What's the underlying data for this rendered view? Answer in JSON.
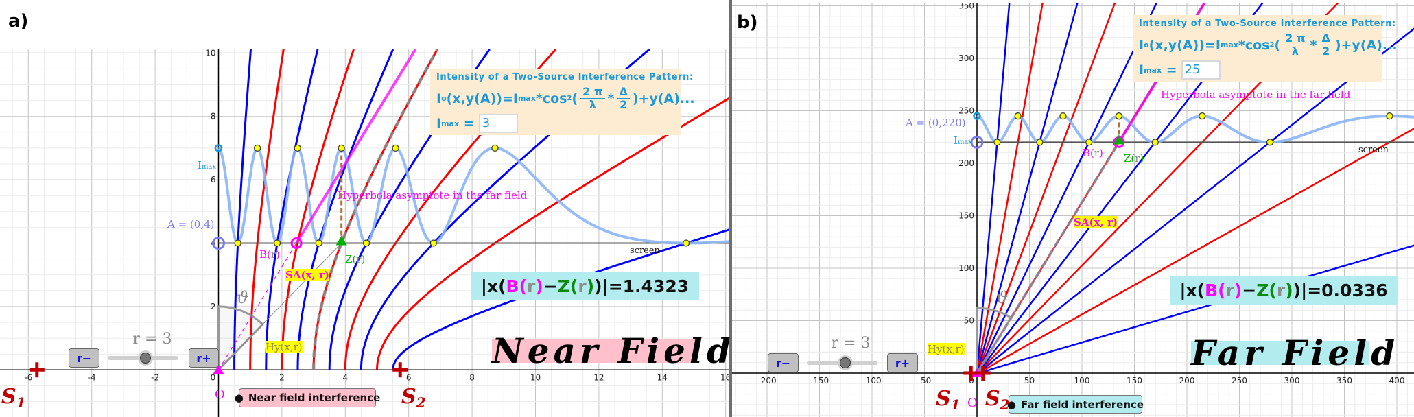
{
  "colors": {
    "min_hyperbola": "#0000ff",
    "max_hyperbola": "#ff0000",
    "intensity_curve": "#8ab4f8",
    "asymptote": "#ff00ff",
    "z_point": "#00b000",
    "source": "#c00000",
    "max_point": "#ffff00",
    "near_field_bg": "#ffc0cb",
    "far_field_bg": "#b2ecee"
  },
  "formula": {
    "title": "Intensity of a Two-Source Interference Pattern:",
    "lhs": "I",
    "lhs_sub": "o",
    "args": "(x,y(A))=I",
    "max_sub": "max",
    "cos": "*cos",
    "sup": "2",
    "open": "(",
    "frac1_num": "2 π",
    "frac1_den": "λ",
    "times": "*",
    "frac2_num": "Δ",
    "frac2_den": "2",
    "tail": ")+y(A)...",
    "imax_main": "I",
    "imax_sub": "max",
    "equals": "="
  },
  "labels": {
    "asymptote": "Hyperbola asymptote in the far field",
    "screen": "screen",
    "b_main": "B(",
    "b_r": "r",
    "b_close": ")",
    "z_main": "Z(",
    "z_r": "r",
    "z_close": ")",
    "sa": "SA(x, r)",
    "hy": "Hy(x,r)",
    "theta": "ϑ",
    "origin": "O",
    "imax_main": "I",
    "imax_sub": "max",
    "s": "S",
    "s1_sub": "1",
    "s2_sub": "2",
    "r_minus": "r−",
    "r_plus": "r+",
    "slider_label": "r = 3",
    "result_prefix": "|x(",
    "result_b": "B",
    "result_r": "r",
    "result_minus": " − ",
    "result_z": "Z",
    "result_suffix": ")|",
    "result_eq": " = ",
    "paren_open": "(",
    "paren_close": ")"
  },
  "slider": {
    "r": 3
  },
  "panel_a": {
    "label": "a)",
    "x_ticks": [
      "-6",
      "-4",
      "-2",
      "0",
      "2",
      "4",
      "6",
      "8",
      "10",
      "12",
      "14",
      "16"
    ],
    "y_ticks": [
      "2",
      "4",
      "6",
      "8",
      "10"
    ],
    "screen_y": 4,
    "imax_value": "3",
    "a_label": "A = (0,4)",
    "result_value": "1.4323",
    "field_title": "Near Field",
    "mode_button": "Near field interference"
  },
  "panel_b": {
    "label": "b)",
    "x_ticks": [
      "-200",
      "-150",
      "-100",
      "-50",
      "0",
      "50",
      "100",
      "150",
      "200",
      "250",
      "300",
      "350",
      "400"
    ],
    "y_ticks": [
      "50",
      "100",
      "150",
      "200",
      "250",
      "300",
      "350"
    ],
    "screen_y": 220,
    "imax_value": "25",
    "a_label": "A = (0,220)",
    "result_value": "0.0336",
    "field_title": "Far Field",
    "mode_button": "Far field interference"
  }
}
